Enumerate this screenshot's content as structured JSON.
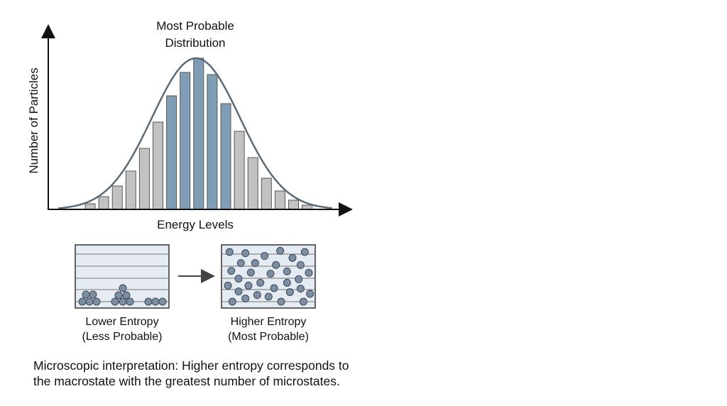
{
  "chart_data": {
    "type": "bar",
    "title": "Most Probable Distribution",
    "title_lines": [
      "Most Probable",
      "Distribution"
    ],
    "xlabel": "Energy Levels",
    "ylabel": "Number of Particles",
    "grid": false,
    "values": [
      8,
      18,
      33,
      54,
      86,
      123,
      160,
      193,
      213,
      190,
      149,
      110,
      73,
      44,
      26,
      13,
      6
    ],
    "highlighted_indices": [
      6,
      7,
      8,
      9,
      10
    ],
    "overlay": "gaussian curve",
    "colors": {
      "highlight": "#7f9db5",
      "normal": "#c2c2c2",
      "curve": "#5b6b78"
    }
  },
  "microstates": {
    "low": {
      "line1": "Lower Entropy",
      "line2": "(Less Probable)"
    },
    "high": {
      "line1": "Higher Entropy",
      "line2": "(Most Probable)"
    },
    "colors": {
      "box": "#e4ebf2",
      "particle": "#7b8fa3"
    }
  },
  "caption": {
    "line1": "Microscopic interpretation: Higher entropy corresponds to",
    "line2": "the macrostate with the greatest number of microstates."
  }
}
